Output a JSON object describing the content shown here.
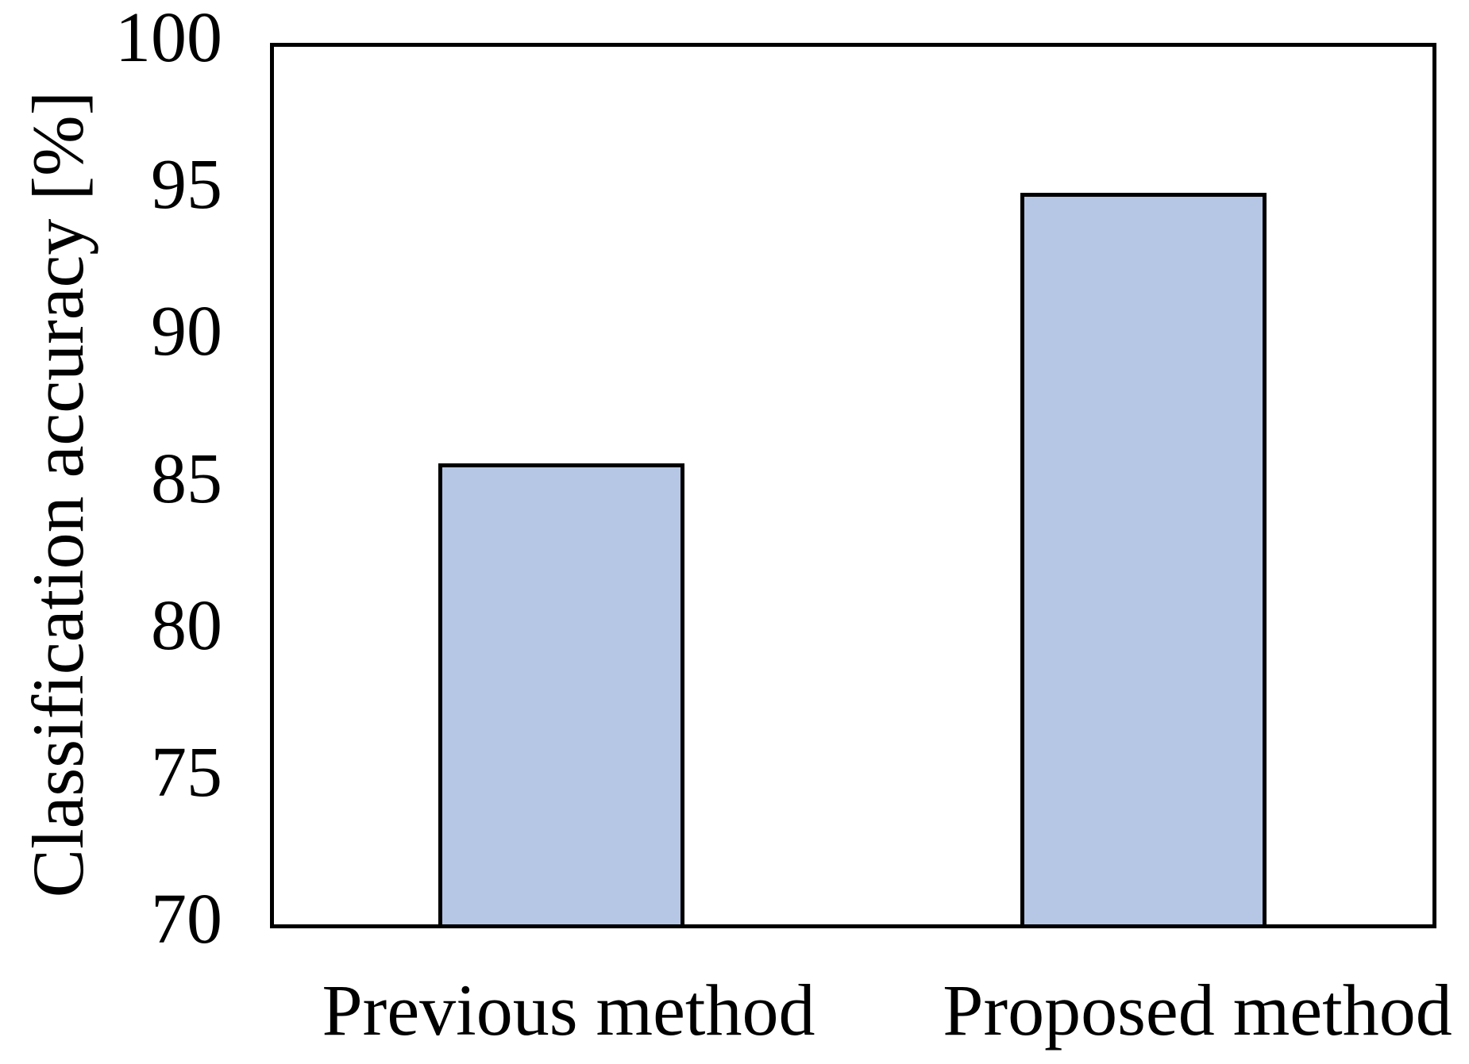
{
  "figure": {
    "background": "#ffffff",
    "text_color": "#000000"
  },
  "chart_data": {
    "type": "bar",
    "title": "",
    "xlabel": "",
    "ylabel": "Classification accuracy [%]",
    "categories": [
      "Previous method",
      "Proposed method"
    ],
    "values": [
      85.7,
      94.9
    ],
    "ylim": [
      70,
      100
    ],
    "yticks": [
      70,
      75,
      80,
      85,
      90,
      95,
      100
    ],
    "grid": false,
    "legend": false,
    "bar_fill": "#b6c7e6",
    "bar_border": "#000000",
    "axis_color": "#000000"
  }
}
